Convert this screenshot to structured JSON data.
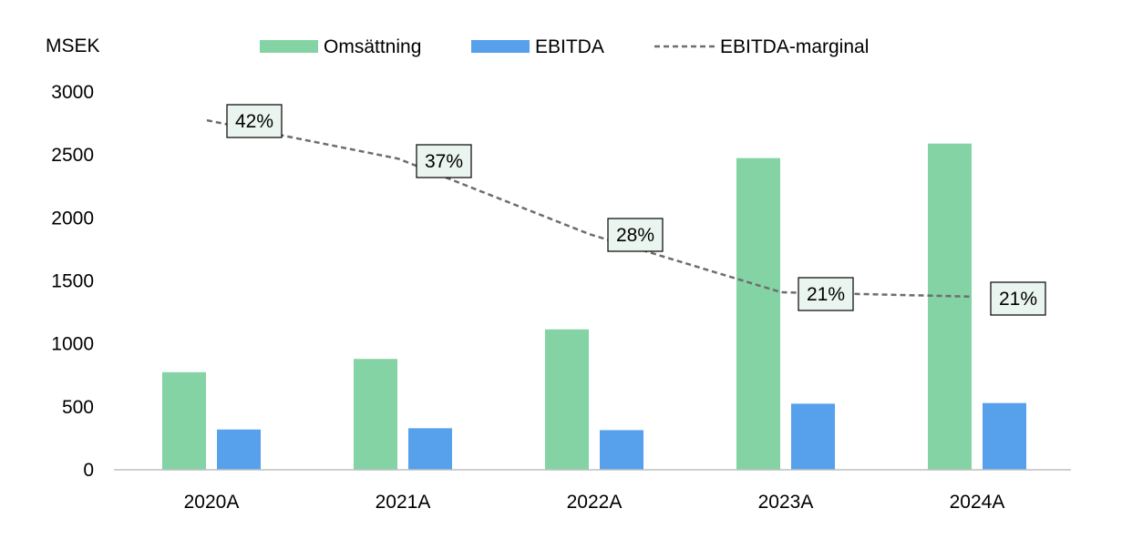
{
  "chart_data": {
    "type": "bar",
    "title": "",
    "unit_label": "MSEK",
    "categories": [
      "2020A",
      "2021A",
      "2022A",
      "2023A",
      "2024A"
    ],
    "ylim": [
      0,
      3000
    ],
    "yticks": [
      0,
      500,
      1000,
      1500,
      2000,
      2500,
      3000
    ],
    "grid": false,
    "legend_position": "top",
    "series": [
      {
        "name": "Omsättning",
        "kind": "bar",
        "color": "#84d3a4",
        "values": [
          775,
          880,
          1115,
          2475,
          2590
        ]
      },
      {
        "name": "EBITDA",
        "kind": "bar",
        "color": "#56a0ec",
        "values": [
          320,
          330,
          315,
          525,
          530
        ]
      },
      {
        "name": "EBITDA-marginal",
        "kind": "line",
        "style": "dashed",
        "color": "#6d6d6d",
        "plotted_values": [
          2775,
          2470,
          1870,
          1410,
          1375
        ],
        "data_labels": [
          "42%",
          "37%",
          "28%",
          "21%",
          "21%"
        ],
        "label_fill": "#e9f5ee",
        "label_border": "#000000"
      }
    ]
  }
}
